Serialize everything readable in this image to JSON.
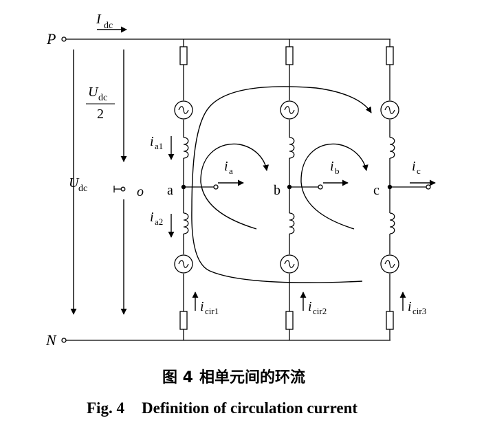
{
  "figure": {
    "caption_cn_label": "图 4",
    "caption_cn_text": "相单元间的环流",
    "caption_en_label": "Fig. 4",
    "caption_en_text": "Definition of circulation current"
  },
  "labels": {
    "P": "P",
    "N": "N",
    "Idc_main": "I",
    "Idc_sub": "dc",
    "Udc2_main": "U",
    "Udc2_sub": "dc",
    "Udc2_den": "2",
    "Udc_main": "U",
    "Udc_sub": "dc",
    "o": "o",
    "a": "a",
    "b": "b",
    "c": "c",
    "ia1_main": "i",
    "ia1_sub": "a1",
    "ia2_main": "i",
    "ia2_sub": "a2",
    "ia_main": "i",
    "ia_sub": "a",
    "ib_main": "i",
    "ib_sub": "b",
    "ic_main": "i",
    "ic_sub": "c",
    "icir1_main": "i",
    "icir1_sub": "cir1",
    "icir2_main": "i",
    "icir2_sub": "cir2",
    "icir3_main": "i",
    "icir3_sub": "cir3"
  }
}
